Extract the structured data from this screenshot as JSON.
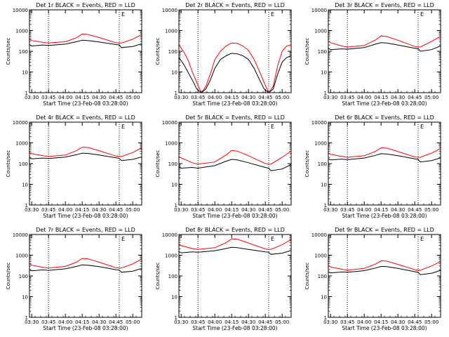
{
  "figure": {
    "events_color": "#000000",
    "lld_color": "#ff0000",
    "background": "#ffffff"
  },
  "chart_data": [
    {
      "type": "line",
      "title": "Det 1r BLACK = Events, RED = LLD",
      "xlabel": "Start Time (23-Feb-08 03:28:00)",
      "ylabel": "Counts/sec",
      "x_tick_labels": [
        "03:30",
        "03:45",
        "04:00",
        "04:15",
        "04:30",
        "04:45",
        "05:00"
      ],
      "y_tick_labels": [
        "1",
        "10",
        "100",
        "1000",
        "10000"
      ],
      "ylim": [
        1,
        10000
      ],
      "y_scale": "log",
      "xlim": [
        "03:28",
        "05:08"
      ],
      "marker_label": "E",
      "vertical_dotted_lines": [
        "03:45",
        "04:48"
      ],
      "series": [
        {
          "values_x": [
            "03:28",
            "03:30",
            "03:40",
            "03:45",
            "04:00",
            "04:10",
            "04:15",
            "04:20",
            "04:30",
            "04:45",
            "04:48",
            "04:50",
            "05:00",
            "05:08"
          ],
          "values_y": [
            400,
            330,
            270,
            250,
            290,
            450,
            680,
            650,
            460,
            260,
            250,
            250,
            380,
            640
          ]
        },
        {
          "values_x": [
            "03:28",
            "03:30",
            "03:40",
            "03:45",
            "04:00",
            "04:10",
            "04:15",
            "04:20",
            "04:30",
            "04:45",
            "04:48",
            "04:50",
            "05:00",
            "05:08"
          ],
          "values_y": [
            210,
            180,
            200,
            190,
            220,
            290,
            340,
            330,
            280,
            210,
            200,
            150,
            170,
            230
          ]
        }
      ]
    },
    {
      "type": "line",
      "title": "Det 2r BLACK = Events, RED = LLD",
      "xlabel": "Start Time (23-Feb-08 03:28:00)",
      "ylabel": "Counts/sec",
      "x_tick_labels": [
        "03:30",
        "03:45",
        "04:00",
        "04:15",
        "04:30",
        "04:45",
        "05:00"
      ],
      "y_tick_labels": [
        "1",
        "10",
        "100",
        "1000",
        "10000"
      ],
      "ylim": [
        1,
        10000
      ],
      "y_scale": "log",
      "xlim": [
        "03:28",
        "05:08"
      ],
      "marker_label": "E",
      "vertical_dotted_lines": [
        "03:45",
        "04:48"
      ],
      "series": [
        {
          "values_x": [
            "03:28",
            "03:32",
            "03:36",
            "03:40",
            "03:44",
            "03:48",
            "03:52",
            "03:56",
            "04:00",
            "04:05",
            "04:10",
            "04:15",
            "04:20",
            "04:25",
            "04:30",
            "04:35",
            "04:40",
            "04:44",
            "04:48",
            "04:52",
            "04:56",
            "05:00",
            "05:04",
            "05:08"
          ],
          "values_y": [
            200,
            100,
            40,
            10,
            3,
            1,
            2,
            8,
            40,
            100,
            180,
            250,
            240,
            180,
            110,
            40,
            10,
            3,
            1,
            2,
            20,
            100,
            180,
            200
          ]
        },
        {
          "values_x": [
            "03:28",
            "03:32",
            "03:36",
            "03:40",
            "03:44",
            "03:48",
            "03:52",
            "03:56",
            "04:00",
            "04:05",
            "04:10",
            "04:15",
            "04:20",
            "04:25",
            "04:30",
            "04:35",
            "04:40",
            "04:44",
            "04:48",
            "04:52",
            "04:56",
            "05:00",
            "05:04",
            "05:08"
          ],
          "values_y": [
            50,
            25,
            10,
            4,
            1.5,
            1,
            1.5,
            4,
            15,
            40,
            60,
            80,
            75,
            60,
            40,
            15,
            4,
            1.5,
            1,
            1.5,
            8,
            30,
            50,
            60
          ]
        }
      ]
    },
    {
      "type": "line",
      "title": "Det 3r BLACK = Events, RED = LLD",
      "xlabel": "Start Time (23-Feb-08 03:28:00)",
      "ylabel": "Counts/sec",
      "x_tick_labels": [
        "03:30",
        "03:45",
        "04:00",
        "04:15",
        "04:30",
        "04:45",
        "05:00"
      ],
      "y_tick_labels": [
        "1",
        "10",
        "100",
        "1000",
        "10000"
      ],
      "ylim": [
        1,
        10000
      ],
      "y_scale": "log",
      "xlim": [
        "03:28",
        "05:08"
      ],
      "marker_label": "E",
      "vertical_dotted_lines": [
        "03:45",
        "04:48"
      ],
      "series": [
        {
          "values_x": [
            "03:28",
            "03:30",
            "03:40",
            "03:45",
            "04:00",
            "04:10",
            "04:15",
            "04:20",
            "04:30",
            "04:45",
            "04:48",
            "04:50",
            "05:00",
            "05:08"
          ],
          "values_y": [
            300,
            260,
            180,
            160,
            190,
            350,
            550,
            520,
            340,
            170,
            160,
            160,
            300,
            520
          ]
        },
        {
          "values_x": [
            "03:28",
            "03:30",
            "03:40",
            "03:45",
            "04:00",
            "04:10",
            "04:15",
            "04:20",
            "04:30",
            "04:45",
            "04:48",
            "04:50",
            "05:00",
            "05:08"
          ],
          "values_y": [
            140,
            120,
            130,
            125,
            150,
            220,
            260,
            250,
            200,
            140,
            130,
            100,
            120,
            180
          ]
        }
      ]
    },
    {
      "type": "line",
      "title": "Det 4r BLACK = Events, RED = LLD",
      "xlabel": "Start Time (23-Feb-08 03:28:00)",
      "ylabel": "Counts/sec",
      "x_tick_labels": [
        "03:30",
        "03:45",
        "04:00",
        "04:15",
        "04:30",
        "04:45",
        "05:00"
      ],
      "y_tick_labels": [
        "1",
        "10",
        "100",
        "1000",
        "10000"
      ],
      "ylim": [
        1,
        10000
      ],
      "y_scale": "log",
      "xlim": [
        "03:28",
        "05:08"
      ],
      "marker_label": "E",
      "vertical_dotted_lines": [
        "03:45",
        "04:48"
      ],
      "series": [
        {
          "values_x": [
            "03:28",
            "03:30",
            "03:40",
            "03:45",
            "04:00",
            "04:10",
            "04:15",
            "04:20",
            "04:30",
            "04:45",
            "04:48",
            "04:50",
            "05:00",
            "05:08"
          ],
          "values_y": [
            360,
            300,
            240,
            220,
            260,
            420,
            620,
            600,
            420,
            230,
            220,
            220,
            340,
            580
          ]
        },
        {
          "values_x": [
            "03:28",
            "03:30",
            "03:40",
            "03:45",
            "04:00",
            "04:10",
            "04:15",
            "04:20",
            "04:30",
            "04:45",
            "04:48",
            "04:50",
            "05:00",
            "05:08"
          ],
          "values_y": [
            190,
            170,
            185,
            175,
            205,
            270,
            320,
            310,
            260,
            190,
            180,
            140,
            160,
            210
          ]
        }
      ]
    },
    {
      "type": "line",
      "title": "Det 5r BLACK = Events, RED = LLD",
      "xlabel": "Start Time (23-Feb-08 03:28:00)",
      "ylabel": "Counts/sec",
      "x_tick_labels": [
        "03:30",
        "03:45",
        "04:00",
        "04:15",
        "04:30",
        "04:45",
        "05:00"
      ],
      "y_tick_labels": [
        "1",
        "10",
        "100",
        "1000",
        "10000"
      ],
      "ylim": [
        1,
        10000
      ],
      "y_scale": "log",
      "xlim": [
        "03:28",
        "05:08"
      ],
      "marker_label": "E",
      "vertical_dotted_lines": [
        "03:45",
        "04:48"
      ],
      "series": [
        {
          "values_x": [
            "03:28",
            "03:30",
            "03:40",
            "03:45",
            "04:00",
            "04:10",
            "04:15",
            "04:20",
            "04:30",
            "04:45",
            "04:48",
            "04:50",
            "05:00",
            "05:08"
          ],
          "values_y": [
            220,
            190,
            110,
            95,
            120,
            260,
            430,
            400,
            240,
            100,
            95,
            95,
            200,
            400
          ]
        },
        {
          "values_x": [
            "03:28",
            "03:30",
            "03:40",
            "03:45",
            "04:00",
            "04:10",
            "04:15",
            "04:20",
            "04:30",
            "04:45",
            "04:48",
            "04:50",
            "05:00",
            "05:08"
          ],
          "values_y": [
            70,
            60,
            65,
            60,
            80,
            130,
            160,
            150,
            110,
            65,
            60,
            45,
            55,
            90
          ]
        }
      ]
    },
    {
      "type": "line",
      "title": "Det 6r BLACK = Events, RED = LLD",
      "xlabel": "Start Time (23-Feb-08 03:28:00)",
      "ylabel": "Counts/sec",
      "x_tick_labels": [
        "03:30",
        "03:45",
        "04:00",
        "04:15",
        "04:30",
        "04:45",
        "05:00"
      ],
      "y_tick_labels": [
        "1",
        "10",
        "100",
        "1000",
        "10000"
      ],
      "ylim": [
        1,
        10000
      ],
      "y_scale": "log",
      "xlim": [
        "03:28",
        "05:08"
      ],
      "marker_label": "E",
      "vertical_dotted_lines": [
        "03:45",
        "04:48"
      ],
      "series": [
        {
          "values_x": [
            "03:28",
            "03:30",
            "03:40",
            "03:45",
            "04:00",
            "04:10",
            "04:15",
            "04:20",
            "04:30",
            "04:45",
            "04:48",
            "04:50",
            "05:00",
            "05:08"
          ],
          "values_y": [
            340,
            280,
            220,
            200,
            240,
            390,
            580,
            560,
            380,
            210,
            200,
            200,
            320,
            540
          ]
        },
        {
          "values_x": [
            "03:28",
            "03:30",
            "03:40",
            "03:45",
            "04:00",
            "04:10",
            "04:15",
            "04:20",
            "04:30",
            "04:45",
            "04:48",
            "04:50",
            "05:00",
            "05:08"
          ],
          "values_y": [
            170,
            150,
            165,
            155,
            185,
            250,
            300,
            290,
            240,
            170,
            160,
            120,
            140,
            190
          ]
        }
      ]
    },
    {
      "type": "line",
      "title": "Det 7r BLACK = Events, RED = LLD",
      "xlabel": "Start Time (23-Feb-08 03:28:00)",
      "ylabel": "Counts/sec",
      "x_tick_labels": [
        "03:30",
        "03:45",
        "04:00",
        "04:15",
        "04:30",
        "04:45",
        "05:00"
      ],
      "y_tick_labels": [
        "1",
        "10",
        "100",
        "1000",
        "10000"
      ],
      "ylim": [
        1,
        10000
      ],
      "y_scale": "log",
      "xlim": [
        "03:28",
        "05:08"
      ],
      "marker_label": "E",
      "vertical_dotted_lines": [
        "03:45",
        "04:48"
      ],
      "series": [
        {
          "values_x": [
            "03:28",
            "03:30",
            "03:40",
            "03:45",
            "04:00",
            "04:10",
            "04:15",
            "04:20",
            "04:30",
            "04:45",
            "04:48",
            "04:50",
            "05:00",
            "05:08"
          ],
          "values_y": [
            400,
            330,
            260,
            240,
            290,
            460,
            700,
            670,
            460,
            250,
            240,
            240,
            380,
            650
          ]
        },
        {
          "values_x": [
            "03:28",
            "03:30",
            "03:40",
            "03:45",
            "04:00",
            "04:10",
            "04:15",
            "04:20",
            "04:30",
            "04:45",
            "04:48",
            "04:50",
            "05:00",
            "05:08"
          ],
          "values_y": [
            200,
            175,
            195,
            185,
            220,
            290,
            340,
            330,
            280,
            200,
            190,
            150,
            170,
            230
          ]
        }
      ]
    },
    {
      "type": "line",
      "title": "Det 8r BLACK = Events, RED = LLD",
      "xlabel": "Start Time (23-Feb-08 03:28:00)",
      "ylabel": "Counts/sec",
      "x_tick_labels": [
        "03:30",
        "03:45",
        "04:00",
        "04:15",
        "04:30",
        "04:45",
        "05:00"
      ],
      "y_tick_labels": [
        "1",
        "10",
        "100",
        "1000",
        "10000"
      ],
      "ylim": [
        1,
        10000
      ],
      "y_scale": "log",
      "xlim": [
        "03:28",
        "05:08"
      ],
      "marker_label": "E",
      "vertical_dotted_lines": [
        "03:45",
        "04:48"
      ],
      "series": [
        {
          "values_x": [
            "03:28",
            "03:30",
            "03:40",
            "03:45",
            "04:00",
            "04:10",
            "04:15",
            "04:20",
            "04:30",
            "04:45",
            "04:48",
            "04:50",
            "05:00",
            "05:08"
          ],
          "values_y": [
            3500,
            2900,
            2100,
            1900,
            2300,
            4000,
            6200,
            5900,
            3900,
            2000,
            1900,
            1900,
            3200,
            5800
          ]
        },
        {
          "values_x": [
            "03:28",
            "03:30",
            "03:40",
            "03:45",
            "04:00",
            "04:10",
            "04:15",
            "04:20",
            "04:30",
            "04:45",
            "04:48",
            "04:50",
            "05:00",
            "05:08"
          ],
          "values_y": [
            1500,
            1300,
            1450,
            1400,
            1650,
            2100,
            2400,
            2300,
            1900,
            1450,
            1400,
            1100,
            1250,
            1700
          ]
        }
      ]
    },
    {
      "type": "line",
      "title": "Det 9r BLACK = Events, RED = LLD",
      "xlabel": "Start Time (23-Feb-08 03:28:00)",
      "ylabel": "Counts/sec",
      "x_tick_labels": [
        "03:30",
        "03:45",
        "04:00",
        "04:15",
        "04:30",
        "04:45",
        "05:00"
      ],
      "y_tick_labels": [
        "1",
        "10",
        "100",
        "1000",
        "10000"
      ],
      "ylim": [
        1,
        10000
      ],
      "y_scale": "log",
      "xlim": [
        "03:28",
        "05:08"
      ],
      "marker_label": "E",
      "vertical_dotted_lines": [
        "03:45",
        "04:48"
      ],
      "series": [
        {
          "values_x": [
            "03:28",
            "03:30",
            "03:40",
            "03:45",
            "04:00",
            "04:10",
            "04:15",
            "04:20",
            "04:30",
            "04:45",
            "04:48",
            "04:50",
            "05:00",
            "05:08"
          ],
          "values_y": [
            330,
            270,
            210,
            190,
            230,
            370,
            540,
            520,
            360,
            200,
            190,
            190,
            300,
            500
          ]
        },
        {
          "values_x": [
            "03:28",
            "03:30",
            "03:40",
            "03:45",
            "04:00",
            "04:10",
            "04:15",
            "04:20",
            "04:30",
            "04:45",
            "04:48",
            "04:50",
            "05:00",
            "05:08"
          ],
          "values_y": [
            160,
            140,
            155,
            150,
            180,
            240,
            290,
            280,
            230,
            160,
            150,
            115,
            135,
            185
          ]
        }
      ]
    }
  ]
}
